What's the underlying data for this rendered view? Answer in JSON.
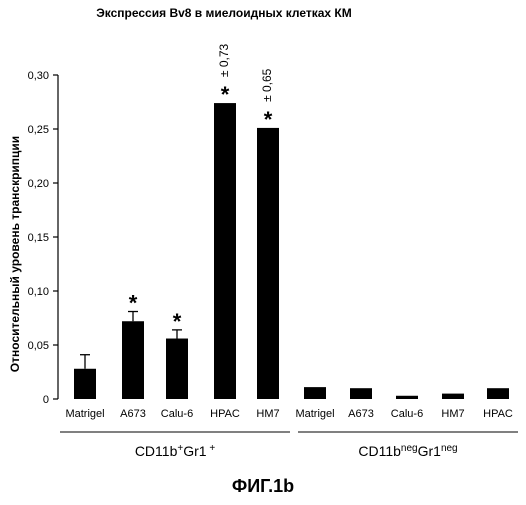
{
  "chart_data": {
    "type": "bar",
    "title": "Экспрессия Bv8 в миелоидных клетках КМ",
    "ylabel": "Относительный уровень транскрипции",
    "ylim": [
      0,
      0.3
    ],
    "yticks": [
      "0",
      "0,05",
      "0,10",
      "0,15",
      "0,20",
      "0,25",
      "0,30"
    ],
    "grid": false,
    "categories": [
      "Matrigel",
      "A673",
      "Calu-6",
      "HPAC",
      "HM7",
      "Matrigel",
      "A673",
      "Calu-6",
      "HM7",
      "HPAC"
    ],
    "values": [
      0.028,
      0.072,
      0.056,
      0.274,
      0.251,
      0.011,
      0.01,
      0.003,
      0.005,
      0.01
    ],
    "errors": [
      0.013,
      0.009,
      0.008,
      0,
      0,
      0,
      0,
      0,
      0,
      0
    ],
    "significant": [
      false,
      true,
      true,
      true,
      true,
      false,
      false,
      false,
      false,
      false
    ],
    "annotations": [
      {
        "bar": 3,
        "text": "± 0,73"
      },
      {
        "bar": 4,
        "text": "± 0,65"
      }
    ],
    "groups": [
      {
        "base": "CD11b",
        "sup1": "+",
        "mid": "Gr1",
        "sup2": " +",
        "range": [
          0,
          4
        ]
      },
      {
        "base": "CD11b",
        "sup1": "neg",
        "mid": "Gr1",
        "sup2": "neg",
        "range": [
          5,
          9
        ]
      }
    ]
  },
  "significance_marker": "*",
  "figure_caption": "ФИГ.1b"
}
